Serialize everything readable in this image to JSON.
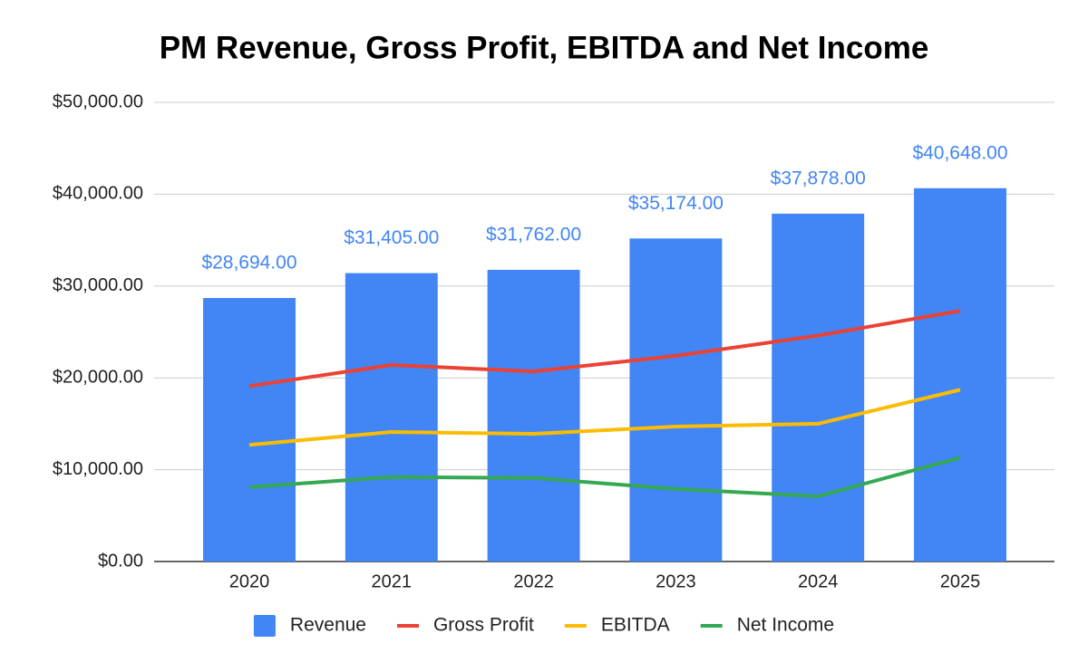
{
  "chart_data": {
    "type": "bar",
    "title": "PM Revenue, Gross Profit, EBITDA and Net Income",
    "categories": [
      "2020",
      "2021",
      "2022",
      "2023",
      "2024",
      "2025"
    ],
    "series": [
      {
        "name": "Revenue",
        "type": "bar",
        "color": "#4285f4",
        "values": [
          28694,
          31405,
          31762,
          35174,
          37878,
          40648
        ],
        "value_labels": [
          "$28,694.00",
          "$31,405.00",
          "$31,762.00",
          "$35,174.00",
          "$37,878.00",
          "$40,648.00"
        ]
      },
      {
        "name": "Gross Profit",
        "type": "line",
        "color": "#ea4335",
        "values": [
          19100,
          21400,
          20700,
          22400,
          24600,
          27300
        ]
      },
      {
        "name": "EBITDA",
        "type": "line",
        "color": "#fbbc04",
        "values": [
          12700,
          14100,
          13900,
          14700,
          15000,
          18700
        ]
      },
      {
        "name": "Net Income",
        "type": "line",
        "color": "#34a853",
        "values": [
          8100,
          9200,
          9100,
          7900,
          7100,
          11300
        ]
      }
    ],
    "ylim": [
      0,
      50000
    ],
    "yticks": [
      {
        "value": 0,
        "label": "$0.00"
      },
      {
        "value": 10000,
        "label": "$10,000.00"
      },
      {
        "value": 20000,
        "label": "$20,000.00"
      },
      {
        "value": 30000,
        "label": "$30,000.00"
      },
      {
        "value": 40000,
        "label": "$40,000.00"
      },
      {
        "value": 50000,
        "label": "$50,000.00"
      }
    ],
    "grid": true,
    "legend": "bottom"
  }
}
